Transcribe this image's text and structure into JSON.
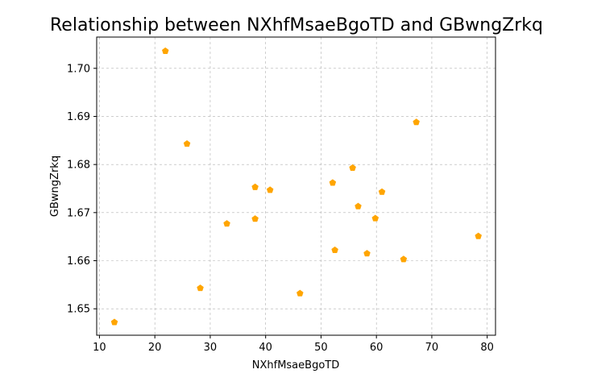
{
  "chart_data": {
    "type": "scatter",
    "title": "Relationship between NXhfMsaeBgoTD and GBwngZrkq",
    "xlabel": "NXhfMsaeBgoTD",
    "ylabel": "GBwngZrkq",
    "xlim": [
      9.5,
      81.5
    ],
    "ylim": [
      1.6445,
      1.7065
    ],
    "xticks": [
      10,
      20,
      30,
      40,
      50,
      60,
      70,
      80
    ],
    "yticks": [
      1.65,
      1.66,
      1.67,
      1.68,
      1.69,
      1.7
    ],
    "ytick_labels": [
      "1.65",
      "1.66",
      "1.67",
      "1.68",
      "1.69",
      "1.70"
    ],
    "grid": true,
    "marker": "pentagon",
    "color": "#ffa500",
    "points": [
      {
        "x": 12.7,
        "y": 1.6472
      },
      {
        "x": 21.9,
        "y": 1.7036
      },
      {
        "x": 25.8,
        "y": 1.6843
      },
      {
        "x": 28.2,
        "y": 1.6543
      },
      {
        "x": 33.0,
        "y": 1.6677
      },
      {
        "x": 38.1,
        "y": 1.6753
      },
      {
        "x": 38.1,
        "y": 1.6687
      },
      {
        "x": 40.8,
        "y": 1.6747
      },
      {
        "x": 46.2,
        "y": 1.6532
      },
      {
        "x": 52.1,
        "y": 1.6762
      },
      {
        "x": 52.5,
        "y": 1.6622
      },
      {
        "x": 55.7,
        "y": 1.6793
      },
      {
        "x": 56.7,
        "y": 1.6713
      },
      {
        "x": 58.3,
        "y": 1.6615
      },
      {
        "x": 59.8,
        "y": 1.6688
      },
      {
        "x": 61.0,
        "y": 1.6743
      },
      {
        "x": 64.9,
        "y": 1.6603
      },
      {
        "x": 67.2,
        "y": 1.6888
      },
      {
        "x": 78.4,
        "y": 1.6651
      }
    ]
  }
}
